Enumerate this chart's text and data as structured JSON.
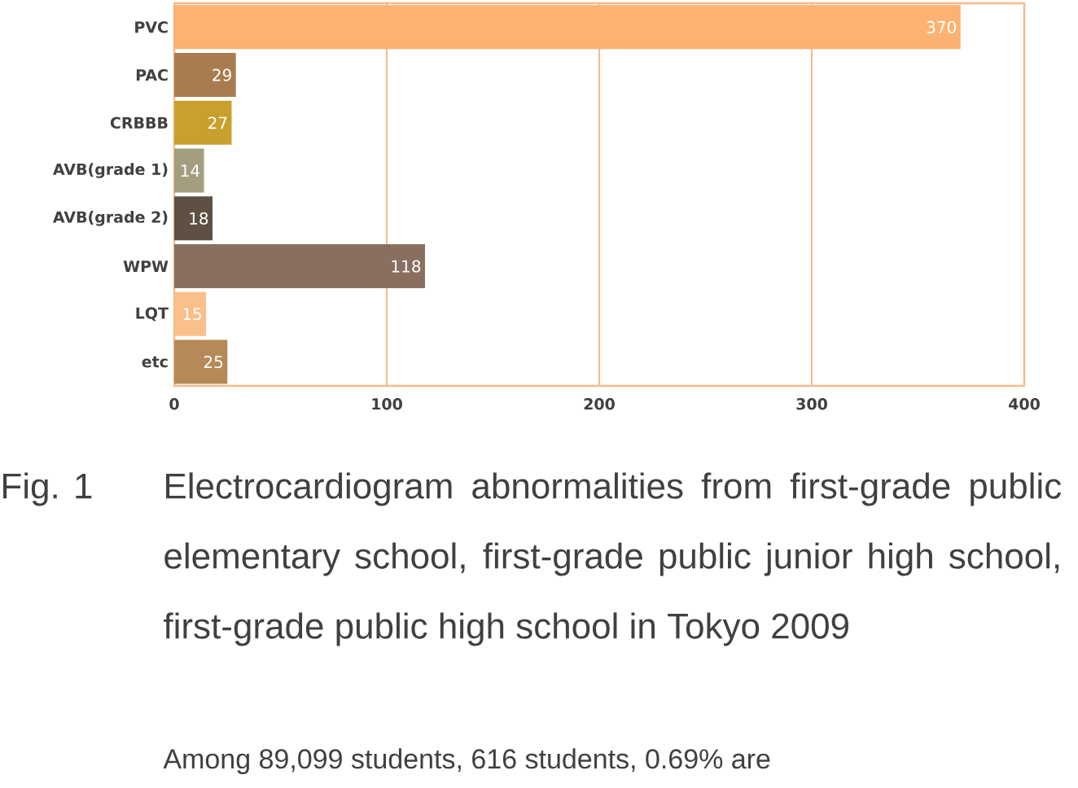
{
  "chart_data": {
    "type": "bar",
    "orientation": "horizontal",
    "title": "Electrocardiogram abnormalities from first-grade public elementary school, first-grade public junior high school, first-grade public high school in Tokyo 2009",
    "categories": [
      "PVC",
      "PAC",
      "CRBBB",
      "AVB(grade 1)",
      "AVB(grade 2)",
      "WPW",
      "LQT",
      "etc"
    ],
    "values": [
      370,
      29,
      27,
      14,
      18,
      118,
      15,
      25
    ],
    "colors": [
      "#fbb272",
      "#a97c50",
      "#c9a02e",
      "#a39e7e",
      "#5e5043",
      "#8a6f60",
      "#fbbf8a",
      "#b58958"
    ],
    "xlim": [
      0,
      400
    ],
    "xticks": [
      0,
      100,
      200,
      300,
      400
    ],
    "grid": "x",
    "data_labels": true,
    "annotations": [
      "Fig. 1",
      "Among 89,099 students, 616 students, 0.69% are"
    ]
  }
}
